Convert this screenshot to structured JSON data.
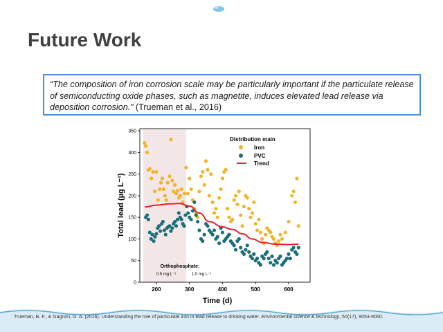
{
  "slide": {
    "title": "Future Work",
    "quote": {
      "text": "“The composition of iron corrosion scale may be particularly important if the particulate release of semiconducting oxide phases, such as magnetite, induces elevated lead release via deposition corrosion.”",
      "citation": " (Trueman et al., 2016)"
    },
    "reference": {
      "authors": "Trueman, B. F., & Gagnon, G. A. (2016). Understanding the role of particulate iron in lead release to drinking water. ",
      "journal": "Environmental science & technology",
      "details": ", 50(17), 9053-9060."
    },
    "colors": {
      "border": "#4a90d9",
      "title": "#404040",
      "wave": "#5aa9d6"
    }
  },
  "chart_data": {
    "type": "scatter",
    "xlabel": "Time (d)",
    "ylabel": "Total lead (µg L⁻¹)",
    "xlim": [
      150,
      665
    ],
    "ylim": [
      0,
      355
    ],
    "xticks": [
      200,
      300,
      400,
      500,
      600
    ],
    "yticks": [
      0,
      50,
      100,
      150,
      200,
      250,
      300,
      350
    ],
    "legend": {
      "title": "Distribution main",
      "position": "top-right",
      "entries": [
        "Iron",
        "PVC",
        "Trend"
      ]
    },
    "shaded_region": {
      "x": [
        160,
        290
      ],
      "color": "#f3e6e6"
    },
    "annotations": {
      "title": "Orthophosphate:",
      "left": "0.5 mg L⁻¹",
      "right": "1.0 mg L⁻¹"
    },
    "series": [
      {
        "name": "Iron",
        "color": "#f0b429",
        "points": [
          [
            164,
            322
          ],
          [
            168,
            315
          ],
          [
            172,
            300
          ],
          [
            176,
            260
          ],
          [
            180,
            262
          ],
          [
            185,
            240
          ],
          [
            190,
            255
          ],
          [
            195,
            210
          ],
          [
            200,
            255
          ],
          [
            205,
            190
          ],
          [
            210,
            215
          ],
          [
            214,
            230
          ],
          [
            218,
            240
          ],
          [
            222,
            215
          ],
          [
            226,
            200
          ],
          [
            230,
            190
          ],
          [
            234,
            230
          ],
          [
            240,
            245
          ],
          [
            244,
            330
          ],
          [
            248,
            235
          ],
          [
            252,
            210
          ],
          [
            256,
            225
          ],
          [
            260,
            205
          ],
          [
            264,
            212
          ],
          [
            268,
            195
          ],
          [
            272,
            200
          ],
          [
            276,
            215
          ],
          [
            280,
            185
          ],
          [
            285,
            205
          ],
          [
            290,
            265
          ],
          [
            295,
            205
          ],
          [
            300,
            240
          ],
          [
            305,
            215
          ],
          [
            310,
            190
          ],
          [
            315,
            170
          ],
          [
            320,
            160
          ],
          [
            325,
            150
          ],
          [
            330,
            210
          ],
          [
            335,
            245
          ],
          [
            340,
            255
          ],
          [
            345,
            225
          ],
          [
            350,
            280
          ],
          [
            355,
            260
          ],
          [
            360,
            200
          ],
          [
            365,
            250
          ],
          [
            370,
            185
          ],
          [
            375,
            160
          ],
          [
            380,
            170
          ],
          [
            385,
            150
          ],
          [
            390,
            195
          ],
          [
            395,
            215
          ],
          [
            400,
            240
          ],
          [
            405,
            255
          ],
          [
            410,
            260
          ],
          [
            415,
            170
          ],
          [
            420,
            150
          ],
          [
            425,
            140
          ],
          [
            430,
            145
          ],
          [
            435,
            190
          ],
          [
            440,
            200
          ],
          [
            445,
            180
          ],
          [
            450,
            210
          ],
          [
            455,
            155
          ],
          [
            460,
            130
          ],
          [
            465,
            175
          ],
          [
            470,
            200
          ],
          [
            475,
            195
          ],
          [
            480,
            170
          ],
          [
            485,
            150
          ],
          [
            490,
            160
          ],
          [
            495,
            185
          ],
          [
            500,
            135
          ],
          [
            505,
            120
          ],
          [
            510,
            145
          ],
          [
            515,
            115
          ],
          [
            520,
            100
          ],
          [
            525,
            90
          ],
          [
            530,
            110
          ],
          [
            535,
            125
          ],
          [
            540,
            120
          ],
          [
            545,
            115
          ],
          [
            550,
            105
          ],
          [
            555,
            100
          ],
          [
            560,
            90
          ],
          [
            565,
            85
          ],
          [
            570,
            95
          ],
          [
            575,
            110
          ],
          [
            580,
            100
          ],
          [
            590,
            115
          ],
          [
            600,
            140
          ],
          [
            610,
            200
          ],
          [
            615,
            210
          ],
          [
            620,
            185
          ],
          [
            625,
            240
          ],
          [
            630,
            130
          ]
        ]
      },
      {
        "name": "PVC",
        "color": "#1a6e7a",
        "points": [
          [
            168,
            150
          ],
          [
            172,
            155
          ],
          [
            176,
            145
          ],
          [
            180,
            115
          ],
          [
            184,
            100
          ],
          [
            188,
            110
          ],
          [
            192,
            95
          ],
          [
            196,
            105
          ],
          [
            200,
            112
          ],
          [
            204,
            125
          ],
          [
            208,
            130
          ],
          [
            212,
            118
          ],
          [
            216,
            135
          ],
          [
            220,
            140
          ],
          [
            224,
            120
          ],
          [
            228,
            110
          ],
          [
            232,
            125
          ],
          [
            236,
            128
          ],
          [
            240,
            130
          ],
          [
            244,
            118
          ],
          [
            248,
            125
          ],
          [
            252,
            135
          ],
          [
            256,
            140
          ],
          [
            260,
            130
          ],
          [
            264,
            145
          ],
          [
            268,
            160
          ],
          [
            272,
            150
          ],
          [
            276,
            145
          ],
          [
            280,
            135
          ],
          [
            284,
            130
          ],
          [
            288,
            155
          ],
          [
            292,
            175
          ],
          [
            296,
            160
          ],
          [
            300,
            150
          ],
          [
            305,
            145
          ],
          [
            310,
            165
          ],
          [
            315,
            185
          ],
          [
            320,
            155
          ],
          [
            325,
            140
          ],
          [
            330,
            120
          ],
          [
            335,
            100
          ],
          [
            340,
            95
          ],
          [
            345,
            110
          ],
          [
            350,
            135
          ],
          [
            355,
            130
          ],
          [
            360,
            120
          ],
          [
            365,
            115
          ],
          [
            370,
            110
          ],
          [
            375,
            120
          ],
          [
            380,
            100
          ],
          [
            385,
            105
          ],
          [
            390,
            90
          ],
          [
            395,
            125
          ],
          [
            400,
            115
          ],
          [
            405,
            95
          ],
          [
            410,
            100
          ],
          [
            415,
            105
          ],
          [
            420,
            110
          ],
          [
            425,
            95
          ],
          [
            430,
            90
          ],
          [
            435,
            85
          ],
          [
            440,
            75
          ],
          [
            445,
            95
          ],
          [
            450,
            100
          ],
          [
            455,
            80
          ],
          [
            460,
            70
          ],
          [
            465,
            65
          ],
          [
            470,
            75
          ],
          [
            475,
            85
          ],
          [
            480,
            70
          ],
          [
            485,
            60
          ],
          [
            490,
            55
          ],
          [
            495,
            65
          ],
          [
            500,
            50
          ],
          [
            505,
            55
          ],
          [
            510,
            45
          ],
          [
            515,
            40
          ],
          [
            520,
            60
          ],
          [
            525,
            55
          ],
          [
            530,
            65
          ],
          [
            535,
            70
          ],
          [
            540,
            55
          ],
          [
            545,
            45
          ],
          [
            550,
            60
          ],
          [
            555,
            40
          ],
          [
            560,
            50
          ],
          [
            565,
            45
          ],
          [
            570,
            55
          ],
          [
            575,
            60
          ],
          [
            580,
            40
          ],
          [
            585,
            45
          ],
          [
            590,
            50
          ],
          [
            595,
            55
          ],
          [
            600,
            65
          ],
          [
            605,
            55
          ],
          [
            610,
            75
          ],
          [
            615,
            80
          ],
          [
            620,
            70
          ],
          [
            625,
            65
          ],
          [
            630,
            80
          ]
        ]
      },
      {
        "name": "Trend",
        "color": "#e0222a",
        "points": [
          [
            165,
            174
          ],
          [
            200,
            178
          ],
          [
            240,
            181
          ],
          [
            270,
            182
          ],
          [
            300,
            176
          ],
          [
            330,
            160
          ],
          [
            360,
            140
          ],
          [
            400,
            128
          ],
          [
            430,
            122
          ],
          [
            460,
            112
          ],
          [
            490,
            100
          ],
          [
            520,
            92
          ],
          [
            560,
            88
          ],
          [
            600,
            87
          ],
          [
            630,
            88
          ]
        ]
      }
    ]
  }
}
